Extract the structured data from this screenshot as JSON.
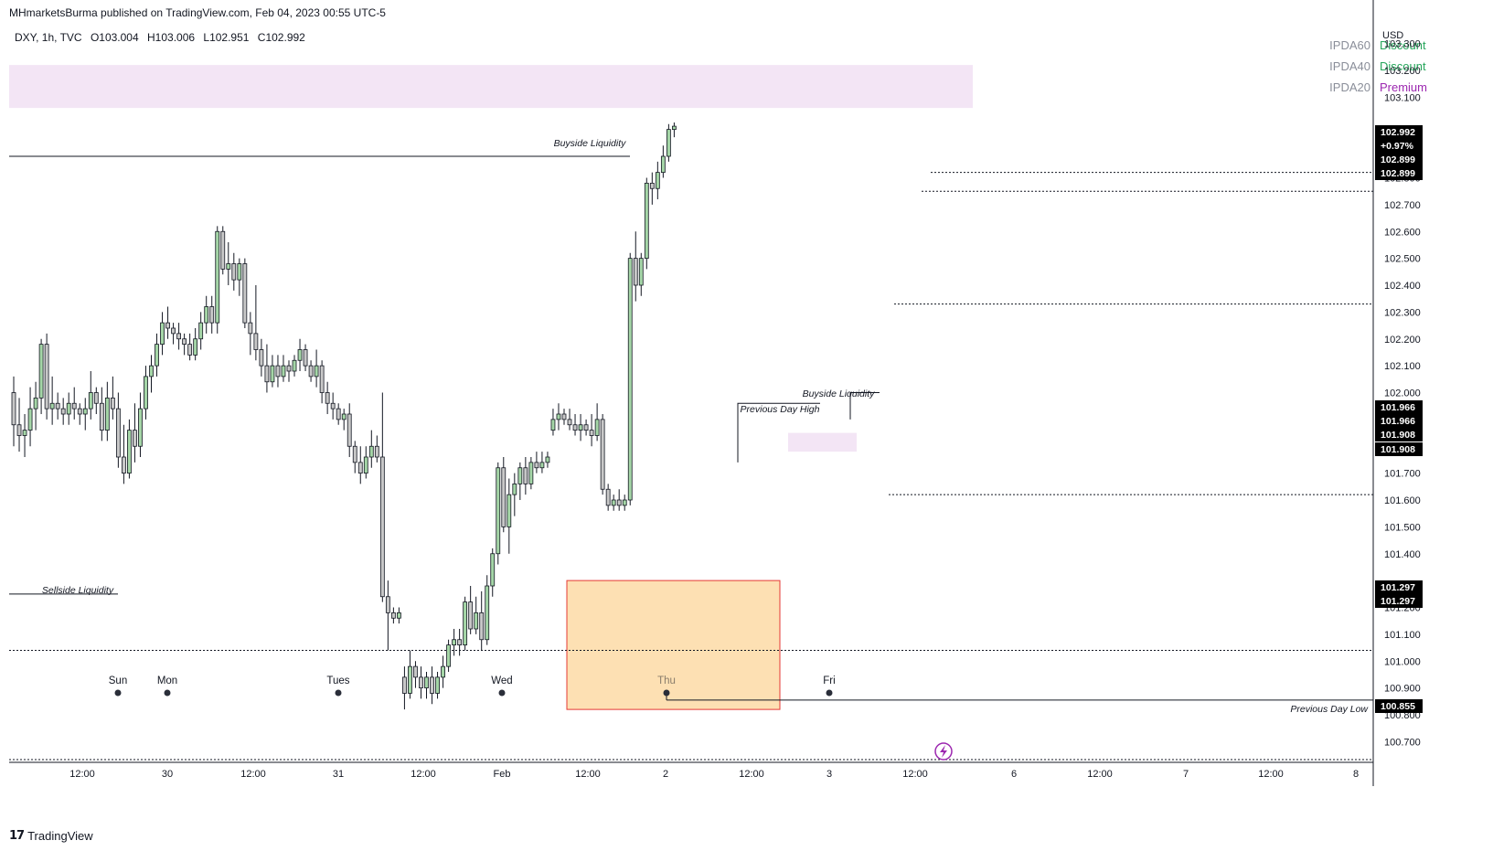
{
  "header": {
    "published": "MHmarketsBurma published on TradingView.com, Feb 04, 2023 00:55 UTC-5"
  },
  "symbol": {
    "label": "DXY, 1h, TVC",
    "open": "O103.004",
    "high": "H103.006",
    "low": "L102.951",
    "close": "C102.992"
  },
  "ipda": [
    {
      "name": "IPDA60",
      "value": "Discount",
      "color": "#26a65b"
    },
    {
      "name": "IPDA40",
      "value": "Discount",
      "color": "#26a65b"
    },
    {
      "name": "IPDA20",
      "value": "Premium",
      "color": "#9c27b0"
    }
  ],
  "footer": {
    "brand": "TradingView",
    "logo": "tv-logo-icon"
  },
  "chart_data": {
    "type": "candlestick",
    "currency": "USD",
    "y_ticks": [
      "103.300",
      "103.200",
      "103.100",
      "102.800",
      "102.700",
      "102.600",
      "102.500",
      "102.400",
      "102.300",
      "102.200",
      "102.100",
      "102.000",
      "101.700",
      "101.600",
      "101.500",
      "101.400",
      "101.200",
      "101.100",
      "101.000",
      "100.900",
      "100.800",
      "100.700"
    ],
    "ylim": [
      100.66,
      103.31
    ],
    "x_ticks": [
      "12:00",
      "30",
      "12:00",
      "31",
      "12:00",
      "Feb",
      "12:00",
      "2",
      "12:00",
      "3",
      "12:00",
      "6",
      "12:00",
      "7",
      "12:00",
      "8"
    ],
    "price_tags": [
      {
        "value": 102.992,
        "labels": [
          "102.992",
          "+0.97%"
        ]
      },
      {
        "value": 102.899,
        "labels": [
          "102.899"
        ]
      },
      {
        "value": 102.899,
        "labels": [
          "102.899"
        ]
      },
      {
        "value": 101.966,
        "labels": [
          "101.966"
        ]
      },
      {
        "value": 101.966,
        "labels": [
          "101.966"
        ]
      },
      {
        "value": 101.908,
        "labels": [
          "101.908"
        ]
      },
      {
        "value": 101.908,
        "labels": [
          "101.908"
        ]
      },
      {
        "value": 101.297,
        "labels": [
          "101.297"
        ]
      },
      {
        "value": 101.297,
        "labels": [
          "101.297"
        ]
      },
      {
        "value": 100.855,
        "labels": [
          "100.855"
        ]
      }
    ],
    "annotations": [
      {
        "text": "Buyside Liquidity",
        "price": 102.88
      },
      {
        "text": "Sellside Liquidity",
        "price": 101.25
      },
      {
        "text": "Previous Day High",
        "price": 101.96
      },
      {
        "text": "Buyside Liquidity",
        "price": 102.02
      },
      {
        "text": "Previous Day Low",
        "price": 100.85
      }
    ],
    "day_markers": [
      "Sun",
      "Mon",
      "Tues",
      "Wed",
      "Thu",
      "Fri"
    ],
    "levels": {
      "buyside_line": 102.88,
      "sellside_line": 101.25,
      "dotted": [
        102.82,
        102.75,
        102.33,
        101.62,
        101.04
      ],
      "previous_day_low": 100.855,
      "previous_day_high": 101.96,
      "premium_zone": [
        103.06,
        103.22
      ],
      "small_zone": [
        101.78,
        101.85
      ],
      "discount_box": [
        100.82,
        101.3
      ]
    },
    "candles": [
      [
        102.0,
        102.06,
        101.8,
        101.88
      ],
      [
        101.88,
        101.98,
        101.78,
        101.84
      ],
      [
        101.84,
        101.92,
        101.76,
        101.86
      ],
      [
        101.86,
        102.02,
        101.8,
        101.94
      ],
      [
        101.94,
        102.04,
        101.86,
        101.98
      ],
      [
        101.98,
        102.2,
        101.92,
        102.18
      ],
      [
        102.18,
        102.22,
        101.9,
        101.94
      ],
      [
        101.94,
        102.06,
        101.88,
        101.96
      ],
      [
        101.96,
        102.0,
        101.9,
        101.94
      ],
      [
        101.94,
        101.98,
        101.88,
        101.92
      ],
      [
        101.92,
        102.0,
        101.88,
        101.96
      ],
      [
        101.96,
        102.02,
        101.9,
        101.94
      ],
      [
        101.94,
        101.96,
        101.88,
        101.92
      ],
      [
        101.92,
        101.98,
        101.86,
        101.94
      ],
      [
        101.94,
        102.08,
        101.9,
        102.0
      ],
      [
        102.0,
        102.02,
        101.92,
        101.96
      ],
      [
        101.96,
        102.02,
        101.82,
        101.86
      ],
      [
        101.86,
        102.04,
        101.82,
        101.98
      ],
      [
        101.98,
        102.06,
        101.9,
        101.94
      ],
      [
        101.94,
        102.0,
        101.72,
        101.76
      ],
      [
        101.76,
        101.88,
        101.66,
        101.7
      ],
      [
        101.7,
        101.9,
        101.68,
        101.86
      ],
      [
        101.86,
        101.96,
        101.74,
        101.8
      ],
      [
        101.8,
        102.0,
        101.76,
        101.94
      ],
      [
        101.94,
        102.1,
        101.9,
        102.06
      ],
      [
        102.06,
        102.14,
        102.0,
        102.1
      ],
      [
        102.1,
        102.22,
        102.06,
        102.18
      ],
      [
        102.18,
        102.3,
        102.14,
        102.26
      ],
      [
        102.26,
        102.32,
        102.2,
        102.24
      ],
      [
        102.24,
        102.26,
        102.18,
        102.22
      ],
      [
        102.22,
        102.26,
        102.16,
        102.2
      ],
      [
        102.2,
        102.22,
        102.14,
        102.18
      ],
      [
        102.18,
        102.22,
        102.12,
        102.14
      ],
      [
        102.14,
        102.24,
        102.12,
        102.2
      ],
      [
        102.2,
        102.3,
        102.16,
        102.26
      ],
      [
        102.26,
        102.36,
        102.22,
        102.32
      ],
      [
        102.32,
        102.36,
        102.22,
        102.26
      ],
      [
        102.26,
        102.62,
        102.22,
        102.6
      ],
      [
        102.6,
        102.62,
        102.44,
        102.46
      ],
      [
        102.46,
        102.56,
        102.4,
        102.48
      ],
      [
        102.48,
        102.52,
        102.38,
        102.42
      ],
      [
        102.42,
        102.5,
        102.36,
        102.48
      ],
      [
        102.48,
        102.5,
        102.24,
        102.26
      ],
      [
        102.26,
        102.3,
        102.14,
        102.22
      ],
      [
        102.22,
        102.4,
        102.12,
        102.16
      ],
      [
        102.16,
        102.2,
        102.06,
        102.1
      ],
      [
        102.1,
        102.18,
        102.0,
        102.04
      ],
      [
        102.04,
        102.14,
        102.02,
        102.1
      ],
      [
        102.1,
        102.14,
        102.02,
        102.06
      ],
      [
        102.06,
        102.14,
        102.04,
        102.1
      ],
      [
        102.1,
        102.12,
        102.04,
        102.08
      ],
      [
        102.08,
        102.14,
        102.06,
        102.12
      ],
      [
        102.12,
        102.2,
        102.08,
        102.16
      ],
      [
        102.16,
        102.18,
        102.08,
        102.1
      ],
      [
        102.1,
        102.12,
        102.04,
        102.06
      ],
      [
        102.06,
        102.16,
        102.02,
        102.1
      ],
      [
        102.1,
        102.12,
        101.96,
        102.0
      ],
      [
        102.0,
        102.04,
        101.92,
        101.96
      ],
      [
        101.96,
        102.0,
        101.9,
        101.94
      ],
      [
        101.94,
        101.96,
        101.88,
        101.9
      ],
      [
        101.9,
        101.94,
        101.86,
        101.92
      ],
      [
        101.92,
        101.96,
        101.76,
        101.8
      ],
      [
        101.8,
        101.82,
        101.7,
        101.74
      ],
      [
        101.74,
        101.8,
        101.66,
        101.7
      ],
      [
        101.7,
        101.8,
        101.68,
        101.76
      ],
      [
        101.76,
        101.86,
        101.72,
        101.8
      ],
      [
        101.8,
        101.84,
        101.74,
        101.76
      ],
      [
        101.76,
        102.0,
        101.22,
        101.24
      ],
      [
        101.24,
        101.3,
        101.04,
        101.18
      ],
      [
        101.18,
        101.2,
        101.14,
        101.16
      ],
      [
        101.16,
        101.2,
        101.14,
        101.18
      ],
      [
        100.94,
        100.98,
        100.82,
        100.88
      ],
      [
        100.88,
        101.04,
        100.86,
        100.98
      ],
      [
        100.98,
        101.0,
        100.9,
        100.94
      ],
      [
        100.94,
        100.98,
        100.86,
        100.9
      ],
      [
        100.9,
        100.96,
        100.86,
        100.94
      ],
      [
        100.94,
        100.98,
        100.84,
        100.88
      ],
      [
        100.88,
        100.96,
        100.86,
        100.94
      ],
      [
        100.94,
        101.02,
        100.9,
        100.98
      ],
      [
        100.98,
        101.08,
        100.96,
        101.06
      ],
      [
        101.06,
        101.12,
        101.02,
        101.08
      ],
      [
        101.08,
        101.12,
        101.02,
        101.06
      ],
      [
        101.06,
        101.24,
        101.04,
        101.22
      ],
      [
        101.22,
        101.28,
        101.1,
        101.12
      ],
      [
        101.12,
        101.24,
        101.1,
        101.18
      ],
      [
        101.18,
        101.26,
        101.04,
        101.08
      ],
      [
        101.08,
        101.32,
        101.06,
        101.28
      ],
      [
        101.28,
        101.42,
        101.24,
        101.4
      ],
      [
        101.4,
        101.74,
        101.36,
        101.72
      ],
      [
        101.72,
        101.76,
        101.48,
        101.5
      ],
      [
        101.5,
        101.68,
        101.4,
        101.62
      ],
      [
        101.62,
        101.7,
        101.54,
        101.66
      ],
      [
        101.66,
        101.74,
        101.6,
        101.72
      ],
      [
        101.72,
        101.76,
        101.62,
        101.66
      ],
      [
        101.66,
        101.76,
        101.64,
        101.74
      ],
      [
        101.74,
        101.78,
        101.7,
        101.72
      ],
      [
        101.72,
        101.78,
        101.7,
        101.74
      ],
      [
        101.74,
        101.78,
        101.72,
        101.76
      ],
      [
        101.86,
        101.94,
        101.84,
        101.9
      ],
      [
        101.9,
        101.96,
        101.86,
        101.92
      ],
      [
        101.92,
        101.94,
        101.88,
        101.9
      ],
      [
        101.9,
        101.94,
        101.86,
        101.88
      ],
      [
        101.88,
        101.92,
        101.84,
        101.86
      ],
      [
        101.86,
        101.92,
        101.82,
        101.88
      ],
      [
        101.88,
        101.9,
        101.84,
        101.86
      ],
      [
        101.86,
        101.92,
        101.8,
        101.84
      ],
      [
        101.84,
        101.96,
        101.82,
        101.9
      ],
      [
        101.9,
        101.92,
        101.62,
        101.64
      ],
      [
        101.64,
        101.66,
        101.56,
        101.58
      ],
      [
        101.58,
        101.62,
        101.56,
        101.6
      ],
      [
        101.6,
        101.64,
        101.56,
        101.58
      ],
      [
        101.58,
        101.62,
        101.56,
        101.6
      ],
      [
        101.6,
        102.52,
        101.58,
        102.5
      ],
      [
        102.5,
        102.6,
        102.34,
        102.4
      ],
      [
        102.4,
        102.52,
        102.36,
        102.5
      ],
      [
        102.5,
        102.8,
        102.46,
        102.78
      ],
      [
        102.78,
        102.82,
        102.7,
        102.76
      ],
      [
        102.76,
        102.86,
        102.72,
        102.82
      ],
      [
        102.82,
        102.92,
        102.8,
        102.88
      ],
      [
        102.88,
        103.0,
        102.86,
        102.98
      ],
      [
        102.98,
        103.006,
        102.951,
        102.992
      ]
    ]
  }
}
